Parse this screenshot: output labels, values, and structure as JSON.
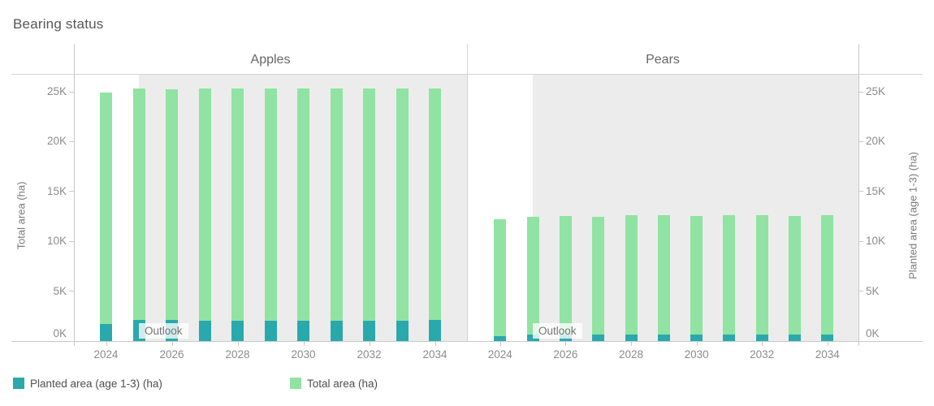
{
  "title": "Bearing status",
  "colors": {
    "total_area": "#90e3a3",
    "planted_area": "#2aa9ac",
    "outlook_band": "#ececec",
    "axis_line": "#c9c9c9"
  },
  "panes": [
    {
      "label": "Apples",
      "outlook_label": "Outlook"
    },
    {
      "label": "Pears",
      "outlook_label": "Outlook"
    }
  ],
  "left_axis": {
    "title": "Total area (ha)",
    "tick_labels": [
      "0K",
      "5K",
      "10K",
      "15K",
      "20K",
      "25K"
    ]
  },
  "right_axis": {
    "title": "Planted area (age 1-3) (ha)",
    "tick_labels": [
      "0K",
      "5K",
      "10K",
      "15K",
      "20K",
      "25K"
    ]
  },
  "x_axis": {
    "tick_labels": [
      "2024",
      "2026",
      "2028",
      "2030",
      "2032",
      "2034"
    ]
  },
  "legend": [
    {
      "label": "Planted area (age 1-3) (ha)",
      "color": "#2aa9ac"
    },
    {
      "label": "Total area (ha)",
      "color": "#90e3a3"
    }
  ],
  "chart_data": {
    "type": "bar",
    "title": "Bearing status",
    "ylabel_left": "Total area (ha)",
    "ylabel_right": "Planted area (age 1-3) (ha)",
    "ylim": [
      0,
      26000
    ],
    "y_ticks": [
      0,
      5000,
      10000,
      15000,
      20000,
      25000
    ],
    "x_tick_years": [
      2024,
      2026,
      2028,
      2030,
      2032,
      2034
    ],
    "outlook_start_year": 2025,
    "grid": false,
    "legend_position": "bottom",
    "facets": [
      {
        "title": "Apples",
        "x": [
          2024,
          2025,
          2026,
          2027,
          2028,
          2029,
          2030,
          2031,
          2032,
          2033,
          2034
        ],
        "series": [
          {
            "name": "Total area (ha)",
            "values": [
              24900,
              25300,
              25250,
              25300,
              25300,
              25300,
              25300,
              25350,
              25350,
              25350,
              25350
            ]
          },
          {
            "name": "Planted area (age 1-3) (ha)",
            "values": [
              1700,
              2100,
              2100,
              2050,
              2000,
              2000,
              2050,
              2050,
              2050,
              2050,
              2100
            ]
          }
        ]
      },
      {
        "title": "Pears",
        "x": [
          2024,
          2025,
          2026,
          2027,
          2028,
          2029,
          2030,
          2031,
          2032,
          2033,
          2034
        ],
        "series": [
          {
            "name": "Total area (ha)",
            "values": [
              12200,
              12450,
              12550,
              12500,
              12600,
              12600,
              12550,
              12600,
              12600,
              12550,
              12600
            ]
          },
          {
            "name": "Planted area (age 1-3) (ha)",
            "values": [
              500,
              650,
              650,
              650,
              650,
              650,
              650,
              650,
              650,
              650,
              650
            ]
          }
        ]
      }
    ]
  }
}
